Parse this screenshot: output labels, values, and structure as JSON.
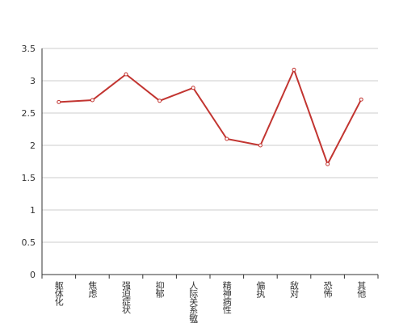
{
  "chart_data": {
    "type": "line",
    "categories": [
      "躯体化",
      "焦虑",
      "强迫症状",
      "抑郁",
      "人际关系敏感",
      "精神病性",
      "偏执",
      "敌对",
      "恐怖",
      "其他"
    ],
    "values": [
      2.67,
      2.7,
      3.1,
      2.69,
      2.89,
      2.1,
      2.0,
      3.17,
      1.71,
      2.71
    ],
    "color": "#c23531",
    "ylim": [
      0,
      3.5
    ],
    "yticks": [
      0,
      0.5,
      1,
      1.5,
      2,
      2.5,
      3,
      3.5
    ],
    "grid": true
  }
}
